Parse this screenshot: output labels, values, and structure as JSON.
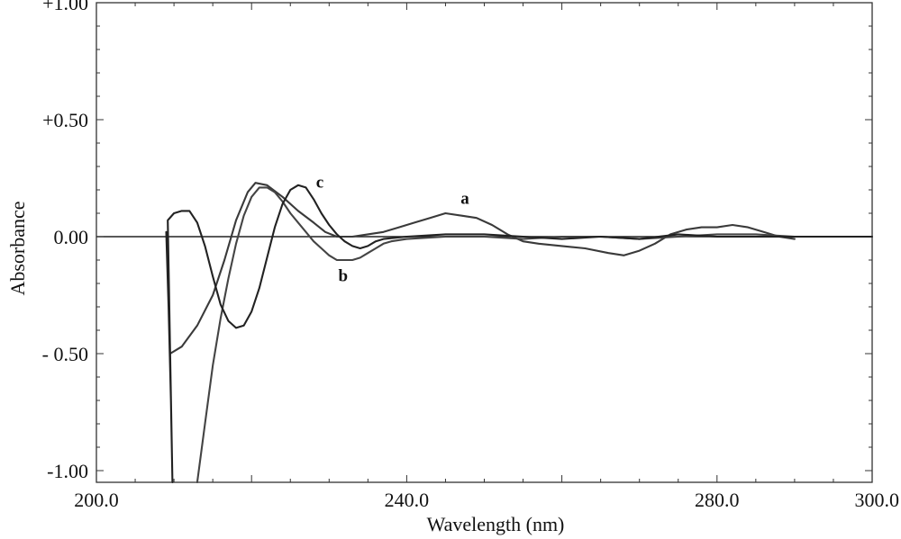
{
  "chart_data": {
    "type": "line",
    "xlabel": "Wavelength (nm)",
    "ylabel": "Absorbance",
    "xlim": [
      200,
      300
    ],
    "ylim": [
      -1.05,
      1.0
    ],
    "x_ticks": [
      {
        "value": 200,
        "label": "200.0"
      },
      {
        "value": 240,
        "label": "240.0"
      },
      {
        "value": 280,
        "label": "280.0"
      },
      {
        "value": 300,
        "label": "300.0"
      }
    ],
    "y_ticks": [
      {
        "value": 1.0,
        "label": "+1.00"
      },
      {
        "value": 0.5,
        "label": "+0.50"
      },
      {
        "value": 0.0,
        "label": "0.00"
      },
      {
        "value": -0.5,
        "label": "- 0.50"
      },
      {
        "value": -1.0,
        "label": "-1.00"
      }
    ],
    "grid": false,
    "series": [
      {
        "name": "a",
        "color": "#3a3a3a",
        "points": [
          [
            209.5,
            -0.5
          ],
          [
            211,
            -0.47
          ],
          [
            213,
            -0.38
          ],
          [
            215,
            -0.25
          ],
          [
            216.5,
            -0.1
          ],
          [
            218,
            0.07
          ],
          [
            219.5,
            0.19
          ],
          [
            220.5,
            0.23
          ],
          [
            222,
            0.22
          ],
          [
            224,
            0.17
          ],
          [
            226,
            0.11
          ],
          [
            228,
            0.06
          ],
          [
            229.5,
            0.02
          ],
          [
            231,
            0.0
          ],
          [
            233,
            0.0
          ],
          [
            235,
            0.01
          ],
          [
            237,
            0.02
          ],
          [
            239,
            0.04
          ],
          [
            241,
            0.06
          ],
          [
            243,
            0.08
          ],
          [
            245,
            0.1
          ],
          [
            247,
            0.09
          ],
          [
            249,
            0.08
          ],
          [
            251,
            0.05
          ],
          [
            253,
            0.01
          ],
          [
            255,
            -0.02
          ],
          [
            257,
            -0.03
          ],
          [
            260,
            -0.04
          ],
          [
            263,
            -0.05
          ],
          [
            266,
            -0.07
          ],
          [
            268,
            -0.08
          ],
          [
            270,
            -0.06
          ],
          [
            272,
            -0.03
          ],
          [
            274,
            0.01
          ],
          [
            276,
            0.03
          ],
          [
            278,
            0.04
          ],
          [
            280,
            0.04
          ],
          [
            282,
            0.05
          ],
          [
            284,
            0.04
          ],
          [
            286,
            0.02
          ],
          [
            288,
            0.0
          ],
          [
            290,
            -0.01
          ]
        ]
      },
      {
        "name": "b",
        "color": "#444444",
        "points": [
          [
            213,
            -1.05
          ],
          [
            214,
            -0.8
          ],
          [
            215,
            -0.55
          ],
          [
            216,
            -0.35
          ],
          [
            217,
            -0.18
          ],
          [
            218,
            -0.03
          ],
          [
            219,
            0.09
          ],
          [
            220,
            0.17
          ],
          [
            221,
            0.21
          ],
          [
            222,
            0.21
          ],
          [
            223,
            0.19
          ],
          [
            224,
            0.15
          ],
          [
            225,
            0.1
          ],
          [
            226,
            0.06
          ],
          [
            227,
            0.02
          ],
          [
            228,
            -0.02
          ],
          [
            229,
            -0.05
          ],
          [
            230,
            -0.08
          ],
          [
            231,
            -0.1
          ],
          [
            232,
            -0.1
          ],
          [
            233,
            -0.1
          ],
          [
            234,
            -0.09
          ],
          [
            235,
            -0.07
          ],
          [
            236,
            -0.05
          ],
          [
            237,
            -0.03
          ],
          [
            238,
            -0.02
          ],
          [
            240,
            -0.01
          ],
          [
            245,
            0.0
          ],
          [
            250,
            0.0
          ],
          [
            255,
            -0.01
          ],
          [
            260,
            0.0
          ],
          [
            265,
            0.0
          ],
          [
            270,
            -0.01
          ],
          [
            275,
            0.0
          ],
          [
            280,
            0.01
          ],
          [
            285,
            0.01
          ],
          [
            290,
            0.0
          ]
        ]
      },
      {
        "name": "c",
        "color": "#222222",
        "points": [
          [
            209,
            0.02
          ],
          [
            209.3,
            -0.3
          ],
          [
            209.6,
            -0.7
          ],
          [
            209.8,
            -1.05
          ],
          [
            209.2,
            0.07
          ],
          [
            210,
            0.1
          ],
          [
            211,
            0.11
          ],
          [
            212,
            0.11
          ],
          [
            213,
            0.06
          ],
          [
            214,
            -0.04
          ],
          [
            215,
            -0.17
          ],
          [
            216,
            -0.29
          ],
          [
            217,
            -0.36
          ],
          [
            218,
            -0.39
          ],
          [
            219,
            -0.38
          ],
          [
            220,
            -0.32
          ],
          [
            221,
            -0.22
          ],
          [
            222,
            -0.09
          ],
          [
            223,
            0.04
          ],
          [
            224,
            0.14
          ],
          [
            225,
            0.2
          ],
          [
            226,
            0.22
          ],
          [
            227,
            0.21
          ],
          [
            228,
            0.16
          ],
          [
            229,
            0.1
          ],
          [
            230,
            0.05
          ],
          [
            231,
            0.01
          ],
          [
            232,
            -0.02
          ],
          [
            233,
            -0.04
          ],
          [
            234,
            -0.05
          ],
          [
            235,
            -0.04
          ],
          [
            236,
            -0.02
          ],
          [
            237,
            -0.01
          ],
          [
            240,
            0.0
          ],
          [
            245,
            0.01
          ],
          [
            250,
            0.01
          ],
          [
            255,
            0.0
          ],
          [
            260,
            -0.01
          ],
          [
            265,
            0.0
          ],
          [
            270,
            -0.01
          ],
          [
            275,
            0.01
          ],
          [
            280,
            0.0
          ],
          [
            285,
            0.0
          ],
          [
            290,
            0.0
          ],
          [
            295,
            0.0
          ],
          [
            300,
            0.0
          ]
        ]
      }
    ],
    "annotations": [
      {
        "text": "a",
        "x": 247.5,
        "y": 0.14
      },
      {
        "text": "b",
        "x": 231.8,
        "y": -0.19
      },
      {
        "text": "c",
        "x": 228.8,
        "y": 0.21
      }
    ]
  }
}
